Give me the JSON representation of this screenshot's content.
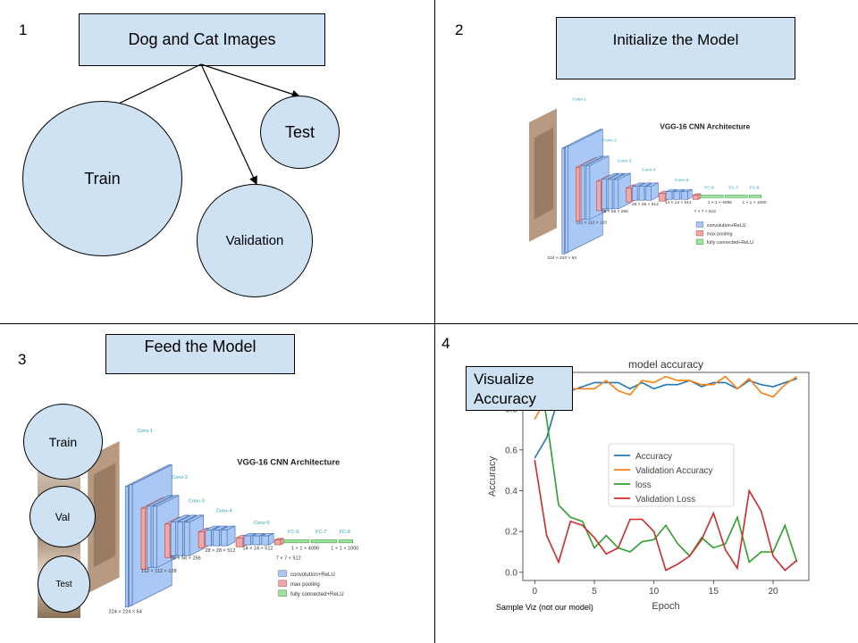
{
  "quadrant1": {
    "number": "1",
    "title": "Dog and Cat Images",
    "train": "Train",
    "validation": "Validation",
    "test": "Test"
  },
  "quadrant2": {
    "number": "2",
    "title": "Initialize the Model"
  },
  "quadrant3": {
    "number": "3",
    "title": "Feed the Model",
    "train": "Train",
    "val": "Val",
    "test": "Test"
  },
  "quadrant4": {
    "number": "4",
    "title": "Visualize Accuracy",
    "footnote": "Sample Viz (not our model)"
  },
  "vgg": {
    "title": "VGG-16 CNN Architecture",
    "conv_labels": [
      "Conv-1",
      "Conv-2",
      "Conv-3",
      "Conv-4",
      "Conv-5"
    ],
    "fc_labels": [
      "FC-6",
      "FC-7",
      "FC-8"
    ],
    "dims": [
      "224 × 224 × 64",
      "112 × 112 × 128",
      "56 × 56 × 256",
      "28 × 28 × 512",
      "14 × 14 × 512",
      "7 × 7 × 512",
      "1 × 1 × 4096",
      "1 × 1 × 1000"
    ],
    "legend": [
      "convolution+ReLU",
      "max pooling",
      "fully connected+ReLU"
    ],
    "colors": {
      "conv": "#a9c8f5",
      "pool": "#f2a7a7",
      "fc": "#9ee39e",
      "label": "#2aa6c0"
    }
  },
  "chart_data": {
    "type": "line",
    "title": "model accuracy",
    "xlabel": "Epoch",
    "ylabel": "Accuracy",
    "xlim": [
      -1,
      23
    ],
    "ylim": [
      -0.04,
      0.98
    ],
    "xticks": [
      0,
      5,
      10,
      15,
      20
    ],
    "yticks": [
      0.0,
      0.2,
      0.4,
      0.6,
      0.8
    ],
    "x": [
      0,
      1,
      2,
      3,
      4,
      5,
      6,
      7,
      8,
      9,
      10,
      11,
      12,
      13,
      14,
      15,
      16,
      17,
      18,
      19,
      20,
      21,
      22
    ],
    "legend_position": "center",
    "series": [
      {
        "name": "Accuracy",
        "color": "#1f77b4",
        "values": [
          0.56,
          0.66,
          0.86,
          0.89,
          0.91,
          0.93,
          0.93,
          0.93,
          0.9,
          0.93,
          0.9,
          0.92,
          0.92,
          0.94,
          0.91,
          0.93,
          0.93,
          0.9,
          0.94,
          0.92,
          0.91,
          0.93,
          0.95
        ]
      },
      {
        "name": "Validation Accuracy",
        "color": "#ff7f0e",
        "values": [
          0.75,
          0.86,
          0.82,
          0.9,
          0.9,
          0.9,
          0.94,
          0.89,
          0.87,
          0.94,
          0.93,
          0.96,
          0.94,
          0.94,
          0.92,
          0.92,
          0.96,
          0.9,
          0.95,
          0.88,
          0.86,
          0.92,
          0.96
        ]
      },
      {
        "name": "loss",
        "color": "#2ca02c",
        "values": [
          1.1,
          0.75,
          0.33,
          0.27,
          0.25,
          0.12,
          0.18,
          0.12,
          0.1,
          0.15,
          0.16,
          0.23,
          0.14,
          0.08,
          0.17,
          0.12,
          0.14,
          0.27,
          0.05,
          0.1,
          0.1,
          0.23,
          0.05
        ]
      },
      {
        "name": "Validation Loss",
        "color": "#d62728",
        "values": [
          0.55,
          0.18,
          0.05,
          0.25,
          0.23,
          0.17,
          0.09,
          0.12,
          0.26,
          0.26,
          0.2,
          0.01,
          0.04,
          0.08,
          0.16,
          0.29,
          0.11,
          0.02,
          0.4,
          0.3,
          0.08,
          0.01,
          0.06
        ]
      }
    ]
  }
}
